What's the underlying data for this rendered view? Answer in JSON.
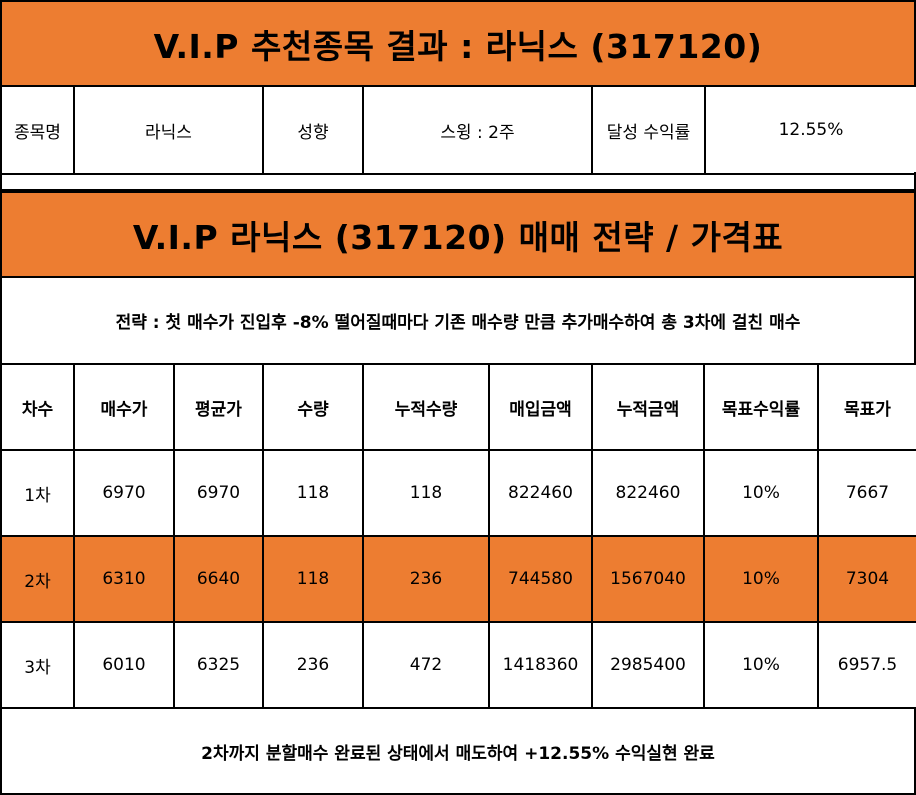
{
  "title_main": "V.I.P 추천종목 결과 : 라닉스 (317120)",
  "info": {
    "name_label": "종목명",
    "name_value": "라닉스",
    "style_label": "성향",
    "style_value": "스윙 : 2주",
    "return_label": "달성 수익률",
    "return_value": "12.55%"
  },
  "title_strategy": "V.I.P 라닉스 (317120) 매매 전략 / 가격표",
  "strategy_text": "전략 : 첫 매수가 진입후 -8% 떨어질때마다 기존 매수량 만큼 추가매수하여 총 3차에 걸친 매수",
  "table": {
    "headers": [
      "차수",
      "매수가",
      "평균가",
      "수량",
      "누적수량",
      "매입금액",
      "누적금액",
      "목표수익률",
      "목표가"
    ],
    "rows": [
      [
        "1차",
        "6970",
        "6970",
        "118",
        "118",
        "822460",
        "822460",
        "10%",
        "7667"
      ],
      [
        "2차",
        "6310",
        "6640",
        "118",
        "236",
        "744580",
        "1567040",
        "10%",
        "7304"
      ],
      [
        "3차",
        "6010",
        "6325",
        "236",
        "472",
        "1418360",
        "2985400",
        "10%",
        "6957.5"
      ]
    ]
  },
  "footer_text": "2차까지 분할매수 완료된 상태에서 매도하여 +12.55% 수익실현 완료",
  "colors": {
    "accent": "#ed7d31"
  }
}
